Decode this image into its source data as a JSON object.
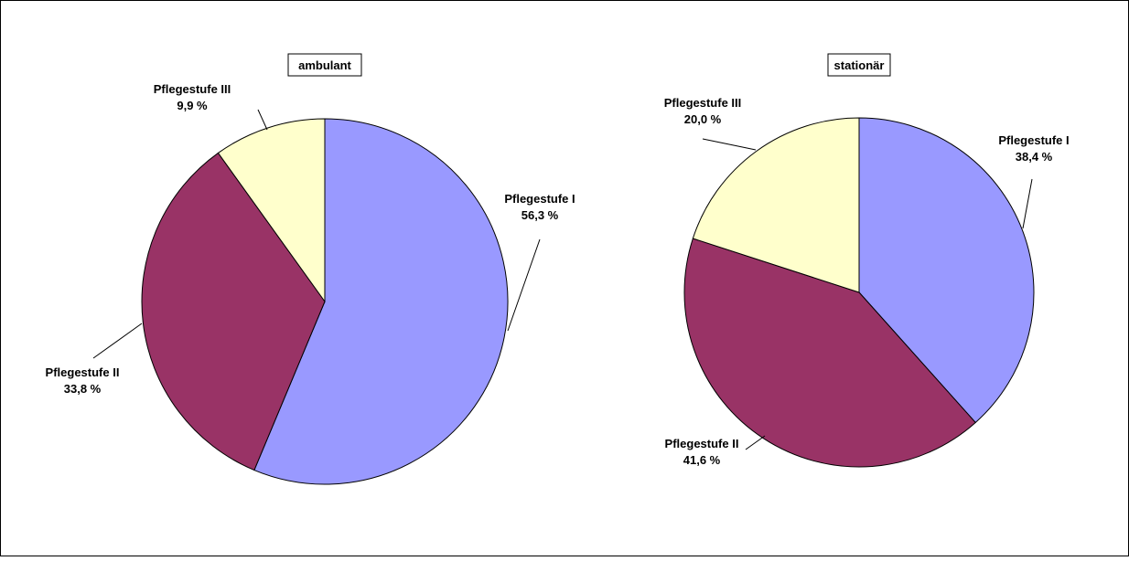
{
  "chart_data": [
    {
      "type": "pie",
      "title": "ambulant",
      "categories": [
        "Pflegestufe I",
        "Pflegestufe II",
        "Pflegestufe III"
      ],
      "values": [
        56.3,
        33.8,
        9.9
      ],
      "value_labels": [
        "56,3 %",
        "33,8 %",
        "9,9 %"
      ],
      "colors": [
        "#9999ff",
        "#993366",
        "#ffffcc"
      ],
      "start_angle": "12 o'clock",
      "direction": "clockwise",
      "legend": "none"
    },
    {
      "type": "pie",
      "title": "stationär",
      "categories": [
        "Pflegestufe I",
        "Pflegestufe II",
        "Pflegestufe III"
      ],
      "values": [
        38.4,
        41.6,
        20.0
      ],
      "value_labels": [
        "38,4 %",
        "41,6 %",
        "20,0 %"
      ],
      "colors": [
        "#9999ff",
        "#993366",
        "#ffffcc"
      ],
      "start_angle": "12 o'clock",
      "direction": "clockwise",
      "legend": "none"
    }
  ]
}
